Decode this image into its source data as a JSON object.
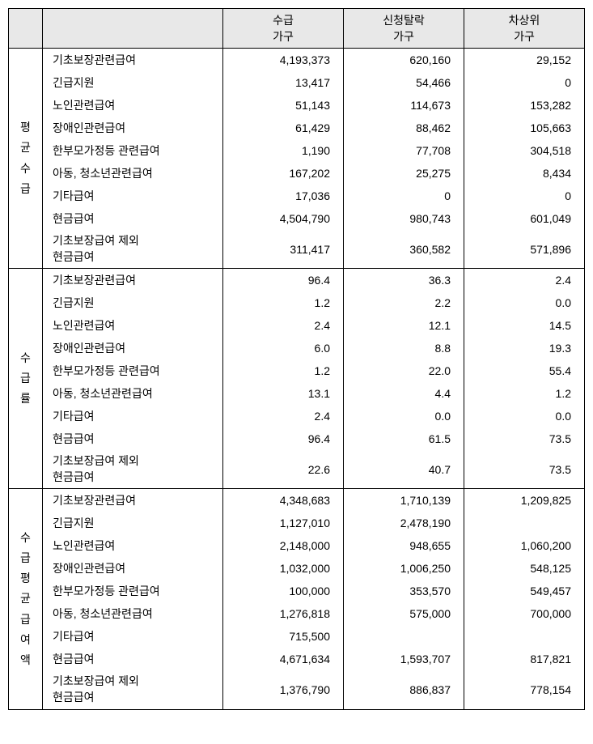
{
  "headers": {
    "col1_l1": "수급",
    "col1_l2": "가구",
    "col2_l1": "신청탈락",
    "col2_l2": "가구",
    "col3_l1": "차상위",
    "col3_l2": "가구"
  },
  "groups": [
    {
      "label": "평균수급",
      "labelChars": [
        "평",
        "균",
        "수",
        "급"
      ],
      "rows": [
        {
          "label": "기초보장관련급여",
          "c1": "4,193,373",
          "c2": "620,160",
          "c3": "29,152",
          "multi": false
        },
        {
          "label": "긴급지원",
          "c1": "13,417",
          "c2": "54,466",
          "c3": "0",
          "multi": false
        },
        {
          "label": "노인관련급여",
          "c1": "51,143",
          "c2": "114,673",
          "c3": "153,282",
          "multi": false
        },
        {
          "label": "장애인관련급여",
          "c1": "61,429",
          "c2": "88,462",
          "c3": "105,663",
          "multi": false
        },
        {
          "label": "한부모가정등 관련급여",
          "c1": "1,190",
          "c2": "77,708",
          "c3": "304,518",
          "multi": false
        },
        {
          "label": "아동, 청소년관련급여",
          "c1": "167,202",
          "c2": "25,275",
          "c3": "8,434",
          "multi": false
        },
        {
          "label": "기타급여",
          "c1": "17,036",
          "c2": "0",
          "c3": "0",
          "multi": false
        },
        {
          "label": "현금급여",
          "c1": "4,504,790",
          "c2": "980,743",
          "c3": "601,049",
          "multi": false
        },
        {
          "label_l1": "기초보장급여 제외",
          "label_l2": "현금급여",
          "c1": "311,417",
          "c2": "360,582",
          "c3": "571,896",
          "multi": true
        }
      ]
    },
    {
      "label": "수급률",
      "labelChars": [
        "수",
        "급",
        "률"
      ],
      "rows": [
        {
          "label": "기초보장관련급여",
          "c1": "96.4",
          "c2": "36.3",
          "c3": "2.4",
          "multi": false
        },
        {
          "label": "긴급지원",
          "c1": "1.2",
          "c2": "2.2",
          "c3": "0.0",
          "multi": false
        },
        {
          "label": "노인관련급여",
          "c1": "2.4",
          "c2": "12.1",
          "c3": "14.5",
          "multi": false
        },
        {
          "label": "장애인관련급여",
          "c1": "6.0",
          "c2": "8.8",
          "c3": "19.3",
          "multi": false
        },
        {
          "label": "한부모가정등 관련급여",
          "c1": "1.2",
          "c2": "22.0",
          "c3": "55.4",
          "multi": false
        },
        {
          "label": "아동, 청소년관련급여",
          "c1": "13.1",
          "c2": "4.4",
          "c3": "1.2",
          "multi": false
        },
        {
          "label": "기타급여",
          "c1": "2.4",
          "c2": "0.0",
          "c3": "0.0",
          "multi": false
        },
        {
          "label": "현금급여",
          "c1": "96.4",
          "c2": "61.5",
          "c3": "73.5",
          "multi": false
        },
        {
          "label_l1": "기초보장급여 제외",
          "label_l2": "현금급여",
          "c1": "22.6",
          "c2": "40.7",
          "c3": "73.5",
          "multi": true
        }
      ]
    },
    {
      "label": "수급평균급여액",
      "labelChars": [
        "수",
        "급",
        "평",
        "균",
        "급",
        "여",
        "액"
      ],
      "rows": [
        {
          "label": "기초보장관련급여",
          "c1": "4,348,683",
          "c2": "1,710,139",
          "c3": "1,209,825",
          "multi": false
        },
        {
          "label": "긴급지원",
          "c1": "1,127,010",
          "c2": "2,478,190",
          "c3": "",
          "multi": false
        },
        {
          "label": "노인관련급여",
          "c1": "2,148,000",
          "c2": "948,655",
          "c3": "1,060,200",
          "multi": false
        },
        {
          "label": "장애인관련급여",
          "c1": "1,032,000",
          "c2": "1,006,250",
          "c3": "548,125",
          "multi": false
        },
        {
          "label": "한부모가정등 관련급여",
          "c1": "100,000",
          "c2": "353,570",
          "c3": "549,457",
          "multi": false
        },
        {
          "label": "아동, 청소년관련급여",
          "c1": "1,276,818",
          "c2": "575,000",
          "c3": "700,000",
          "multi": false
        },
        {
          "label": "기타급여",
          "c1": "715,500",
          "c2": "",
          "c3": "",
          "multi": false
        },
        {
          "label": "현금급여",
          "c1": "4,671,634",
          "c2": "1,593,707",
          "c3": "817,821",
          "multi": false
        },
        {
          "label_l1": "기초보장급여 제외",
          "label_l2": "현금급여",
          "c1": "1,376,790",
          "c2": "886,837",
          "c3": "778,154",
          "multi": true
        }
      ]
    }
  ]
}
